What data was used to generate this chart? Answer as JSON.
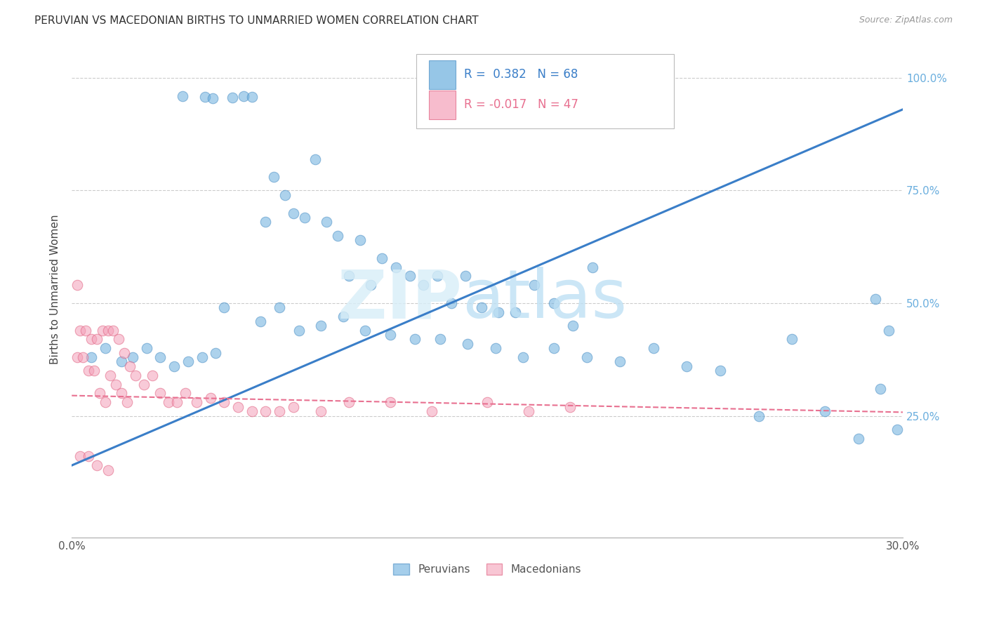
{
  "title": "PERUVIAN VS MACEDONIAN BIRTHS TO UNMARRIED WOMEN CORRELATION CHART",
  "source": "Source: ZipAtlas.com",
  "ylabel": "Births to Unmarried Women",
  "ytick_labels": [
    "",
    "25.0%",
    "50.0%",
    "75.0%",
    "100.0%"
  ],
  "xmin": 0.0,
  "xmax": 0.3,
  "ymin": -0.02,
  "ymax": 1.08,
  "legend_blue_r": "R =  0.382",
  "legend_blue_n": "N = 68",
  "legend_pink_r": "R = -0.017",
  "legend_pink_n": "N = 47",
  "blue_color": "#6AAEDE",
  "blue_edge": "#4A8EC4",
  "pink_color": "#F4A0B8",
  "pink_edge": "#E06080",
  "blue_line_color": "#3A7EC8",
  "pink_line_color": "#E87090",
  "blue_line_x0": 0.0,
  "blue_line_y0": 0.14,
  "blue_line_x1": 0.3,
  "blue_line_y1": 0.93,
  "pink_line_x0": 0.0,
  "pink_line_y0": 0.295,
  "pink_line_x1": 0.3,
  "pink_line_y1": 0.258,
  "blue_x": [
    0.04,
    0.048,
    0.051,
    0.058,
    0.062,
    0.065,
    0.07,
    0.073,
    0.077,
    0.08,
    0.084,
    0.088,
    0.092,
    0.096,
    0.1,
    0.104,
    0.108,
    0.112,
    0.117,
    0.122,
    0.127,
    0.132,
    0.137,
    0.142,
    0.148,
    0.154,
    0.16,
    0.167,
    0.174,
    0.181,
    0.188,
    0.055,
    0.068,
    0.075,
    0.082,
    0.09,
    0.098,
    0.106,
    0.115,
    0.124,
    0.133,
    0.143,
    0.153,
    0.163,
    0.174,
    0.186,
    0.198,
    0.21,
    0.222,
    0.234,
    0.248,
    0.26,
    0.272,
    0.284,
    0.292,
    0.298,
    0.007,
    0.012,
    0.018,
    0.022,
    0.027,
    0.032,
    0.037,
    0.042,
    0.047,
    0.052,
    0.29,
    0.295
  ],
  "blue_y": [
    0.96,
    0.958,
    0.955,
    0.957,
    0.959,
    0.958,
    0.68,
    0.78,
    0.74,
    0.7,
    0.69,
    0.82,
    0.68,
    0.65,
    0.56,
    0.64,
    0.54,
    0.6,
    0.58,
    0.56,
    0.54,
    0.56,
    0.5,
    0.56,
    0.49,
    0.48,
    0.48,
    0.54,
    0.5,
    0.45,
    0.58,
    0.49,
    0.46,
    0.49,
    0.44,
    0.45,
    0.47,
    0.44,
    0.43,
    0.42,
    0.42,
    0.41,
    0.4,
    0.38,
    0.4,
    0.38,
    0.37,
    0.4,
    0.36,
    0.35,
    0.25,
    0.42,
    0.26,
    0.2,
    0.31,
    0.22,
    0.38,
    0.4,
    0.37,
    0.38,
    0.4,
    0.38,
    0.36,
    0.37,
    0.38,
    0.39,
    0.51,
    0.44
  ],
  "pink_x": [
    0.002,
    0.004,
    0.006,
    0.008,
    0.01,
    0.012,
    0.014,
    0.016,
    0.018,
    0.02,
    0.003,
    0.005,
    0.007,
    0.009,
    0.011,
    0.013,
    0.015,
    0.017,
    0.019,
    0.021,
    0.023,
    0.026,
    0.029,
    0.032,
    0.035,
    0.038,
    0.041,
    0.045,
    0.05,
    0.055,
    0.06,
    0.065,
    0.07,
    0.075,
    0.08,
    0.09,
    0.1,
    0.115,
    0.13,
    0.15,
    0.165,
    0.18,
    0.003,
    0.006,
    0.009,
    0.013,
    0.002
  ],
  "pink_y": [
    0.38,
    0.38,
    0.35,
    0.35,
    0.3,
    0.28,
    0.34,
    0.32,
    0.3,
    0.28,
    0.44,
    0.44,
    0.42,
    0.42,
    0.44,
    0.44,
    0.44,
    0.42,
    0.39,
    0.36,
    0.34,
    0.32,
    0.34,
    0.3,
    0.28,
    0.28,
    0.3,
    0.28,
    0.29,
    0.28,
    0.27,
    0.26,
    0.26,
    0.26,
    0.27,
    0.26,
    0.28,
    0.28,
    0.26,
    0.28,
    0.26,
    0.27,
    0.16,
    0.16,
    0.14,
    0.13,
    0.54
  ]
}
